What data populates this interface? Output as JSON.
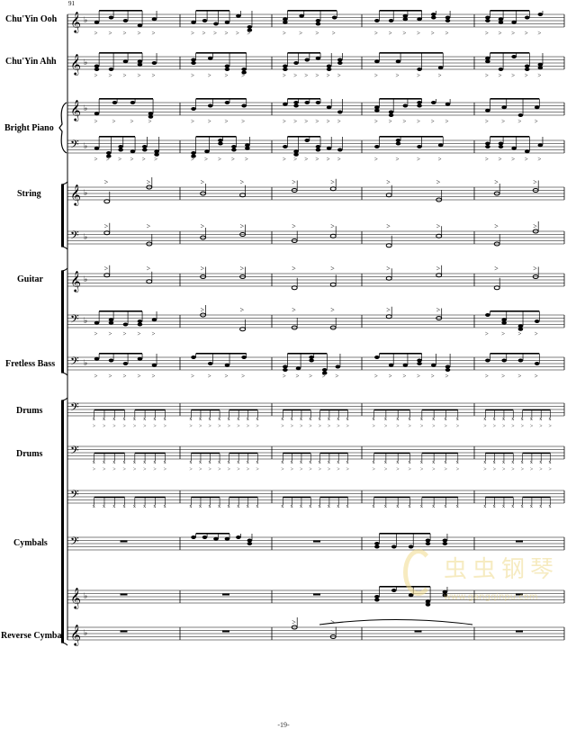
{
  "measure_number": "91",
  "page_number": "-19-",
  "watermark": {
    "text_cn": "虫虫钢琴",
    "url": "www.gangqinpu.com",
    "color": "#f0dc90"
  },
  "staves": [
    {
      "label": "Chu'Yin Ooh",
      "clef": "treble",
      "key_flats": 1,
      "measures": [
        "notes",
        "notes",
        "notes",
        "notes",
        "notes"
      ]
    },
    {
      "label": "Chu'Yin Ahh",
      "clef": "treble",
      "key_flats": 1,
      "measures": [
        "notes",
        "notes",
        "notes",
        "notes",
        "notes"
      ]
    },
    {
      "label": "Bright Piano",
      "clef": "treble",
      "key_flats": 1,
      "measures": [
        "notes",
        "notes",
        "notes",
        "notes",
        "notes"
      ]
    },
    {
      "label": "",
      "clef": "bass",
      "key_flats": 1,
      "measures": [
        "notes",
        "notes",
        "notes",
        "notes",
        "notes"
      ]
    },
    {
      "label": "String",
      "clef": "treble",
      "key_flats": 1,
      "measures": [
        "half",
        "half",
        "half",
        "half",
        "half"
      ]
    },
    {
      "label": "",
      "clef": "bass",
      "key_flats": 1,
      "measures": [
        "half",
        "half",
        "half",
        "half",
        "half"
      ]
    },
    {
      "label": "Guitar",
      "clef": "treble",
      "key_flats": 1,
      "measures": [
        "half",
        "half",
        "half",
        "half",
        "half"
      ]
    },
    {
      "label": "",
      "clef": "bass",
      "key_flats": 1,
      "measures": [
        "notes",
        "half",
        "half",
        "half",
        "notes"
      ]
    },
    {
      "label": "Fretless Bass",
      "clef": "bass",
      "key_flats": 1,
      "measures": [
        "notes",
        "notes",
        "notes",
        "notes",
        "notes"
      ]
    },
    {
      "label": "Drums",
      "clef": "bass",
      "key_flats": 0,
      "measures": [
        "drum",
        "drum",
        "drum",
        "drum",
        "drum"
      ]
    },
    {
      "label": "Drums",
      "clef": "bass",
      "key_flats": 0,
      "measures": [
        "drum",
        "drum",
        "drum",
        "drum",
        "drum"
      ]
    },
    {
      "label": "",
      "clef": "bass",
      "key_flats": 0,
      "measures": [
        "drum",
        "drum",
        "drum",
        "drum",
        "drum"
      ]
    },
    {
      "label": "Cymbals",
      "clef": "bass",
      "key_flats": 0,
      "measures": [
        "rest",
        "notes",
        "rest",
        "notes",
        "rest"
      ]
    },
    {
      "label": "",
      "clef": "treble",
      "key_flats": 1,
      "measures": [
        "rest",
        "rest",
        "rest",
        "notes",
        "rest"
      ]
    },
    {
      "label": "Reverse Cymbal",
      "clef": "treble",
      "key_flats": 1,
      "measures": [
        "rest",
        "rest",
        "half",
        "rest",
        "rest"
      ]
    }
  ]
}
